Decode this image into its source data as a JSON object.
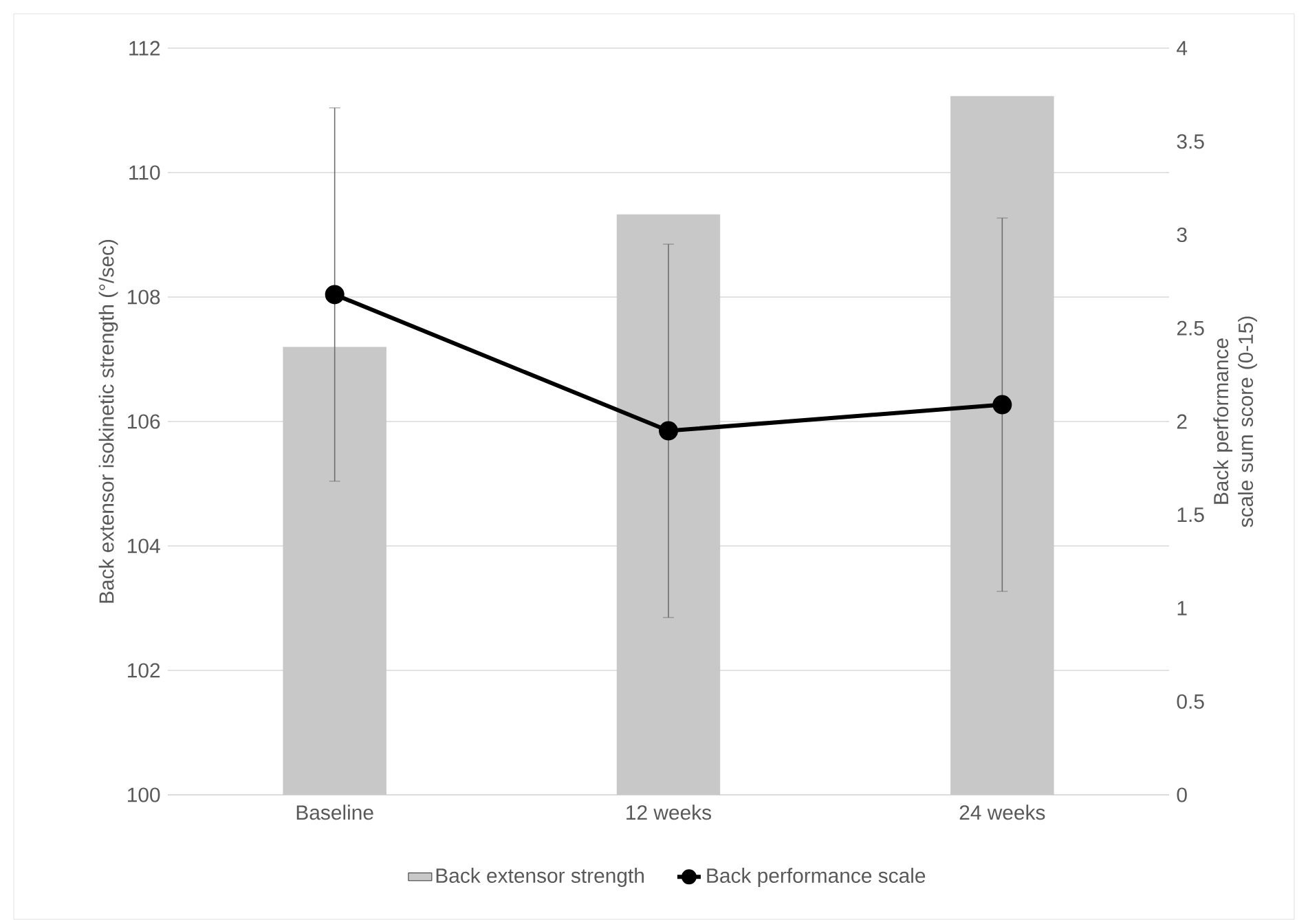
{
  "chart_data": {
    "type": "bar",
    "categories": [
      "Baseline",
      "12 weeks",
      "24 weeks"
    ],
    "series": [
      {
        "name": "Back extensor strength",
        "color": "#c8c8c8",
        "values": [
          107.2,
          109.33,
          111.23
        ]
      },
      {
        "name": "Back performance scale",
        "type": "line",
        "axis": "y2",
        "color": "#000000",
        "values": [
          2.68,
          1.95,
          2.09
        ],
        "errors": [
          1.0,
          1.0,
          1.0
        ]
      }
    ],
    "ylabel": "Back extensor isokinetic strength (°/sec)",
    "y2label": "Back performance scale sum score (0-15)",
    "ylim": [
      100,
      112
    ],
    "yticks": [
      100,
      102,
      104,
      106,
      108,
      110,
      112
    ],
    "y2lim": [
      0,
      4
    ],
    "y2ticks": [
      0,
      0.5,
      1,
      1.5,
      2,
      2.5,
      3,
      3.5,
      4
    ],
    "grid": "y",
    "legend": "bottom",
    "marker": "circle"
  }
}
